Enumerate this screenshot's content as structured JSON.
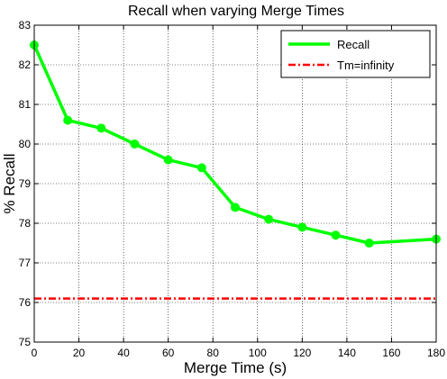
{
  "chart_data": {
    "type": "line",
    "title": "Recall when varying Merge Times",
    "xlabel": "Merge Time (s)",
    "ylabel": "% Recall",
    "xlim": [
      0,
      180
    ],
    "ylim": [
      75,
      83
    ],
    "xticks": [
      0,
      20,
      40,
      60,
      80,
      100,
      120,
      140,
      160,
      180
    ],
    "yticks": [
      75,
      76,
      77,
      78,
      79,
      80,
      81,
      82,
      83
    ],
    "grid": true,
    "legend_position": "top-right",
    "series": [
      {
        "name": "Recall",
        "color": "#00ff00",
        "style": "solid",
        "markers": true,
        "x": [
          0,
          15,
          30,
          45,
          60,
          75,
          90,
          105,
          120,
          135,
          150,
          180
        ],
        "y": [
          82.5,
          80.6,
          80.4,
          80.0,
          79.6,
          79.4,
          78.4,
          78.1,
          77.9,
          77.7,
          77.5,
          77.6
        ]
      },
      {
        "name": "Tm=infinity",
        "color": "#ff0000",
        "style": "dash-dot",
        "markers": false,
        "x": [
          0,
          180
        ],
        "y": [
          76.1,
          76.1
        ]
      }
    ]
  }
}
